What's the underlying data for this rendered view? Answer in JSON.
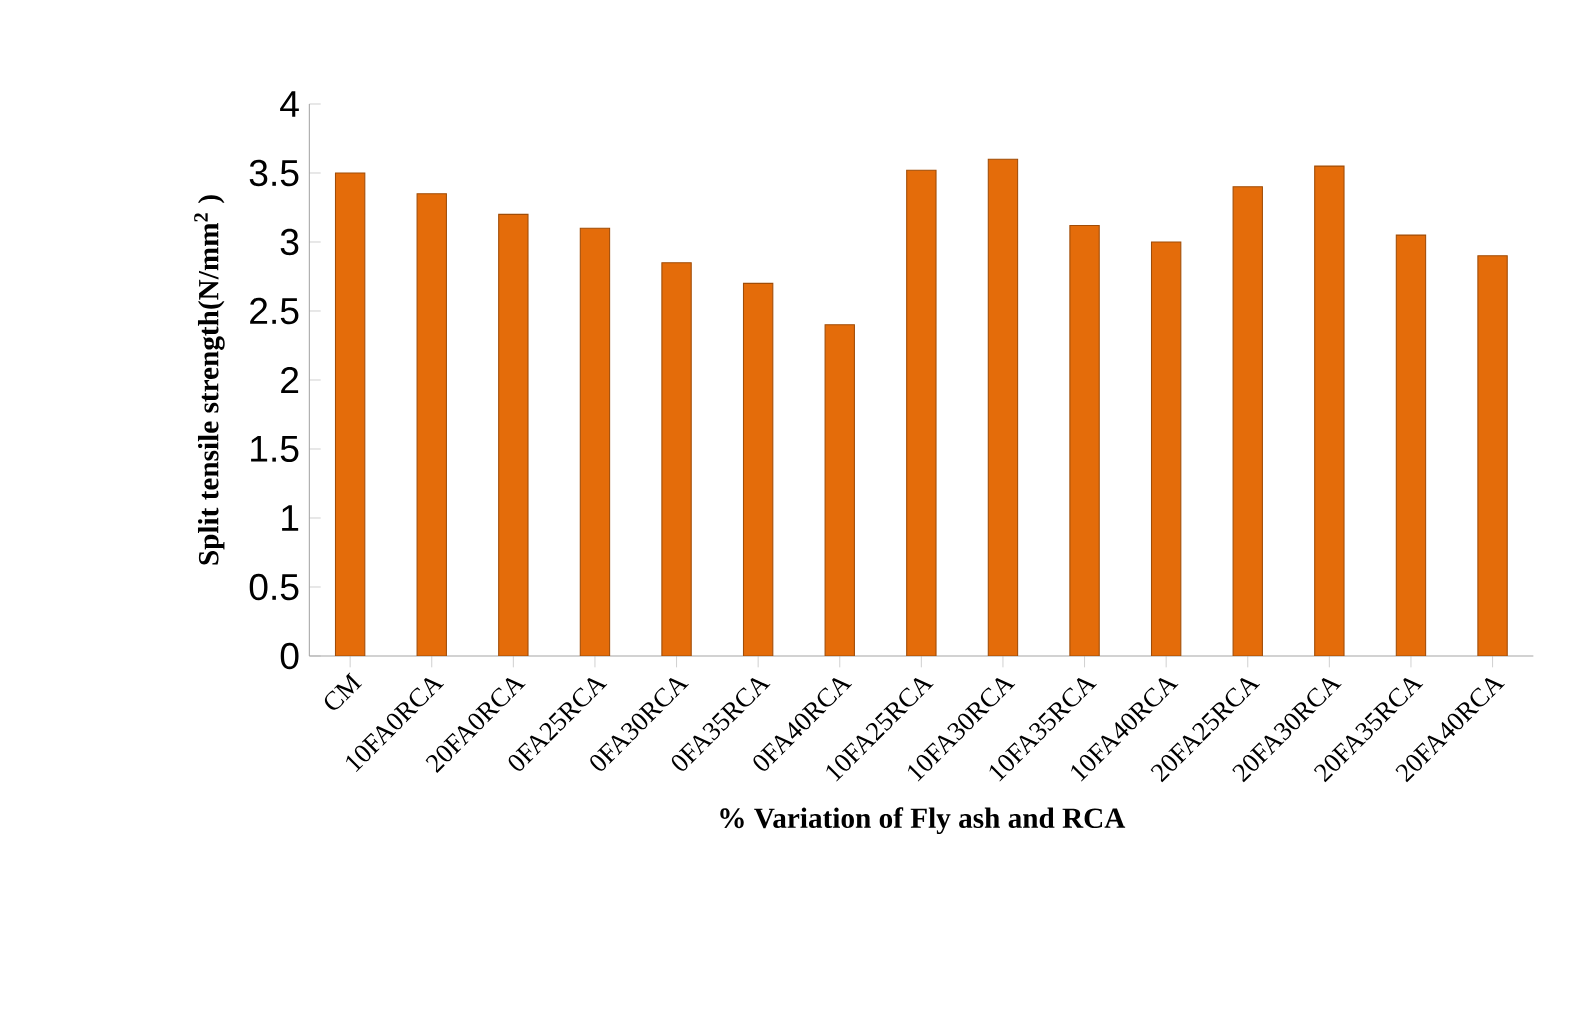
{
  "chart_data": {
    "type": "bar",
    "xlabel": "% Variation of Fly ash and RCA",
    "ylabel": "Split tensile strength(N/mm$^{2}$ )",
    "categories": [
      "CM",
      "10FA0RCA",
      "20FA0RCA",
      "0FA25RCA",
      "0FA30RCA",
      "0FA35RCA",
      "0FA40RCA",
      "10FA25RCA",
      "10FA30RCA",
      "10FA35RCA",
      "10FA40RCA",
      "20FA25RCA",
      "20FA30RCA",
      "20FA35RCA",
      "20FA40RCA"
    ],
    "values": [
      3.5,
      3.35,
      3.2,
      3.1,
      2.85,
      2.7,
      2.4,
      3.52,
      3.6,
      3.12,
      3.0,
      3.4,
      3.55,
      3.05,
      2.9
    ],
    "color": "#e46c0a",
    "ylim": [
      0,
      4
    ],
    "yticks": [
      0,
      0.5,
      1,
      1.5,
      2,
      2.5,
      3,
      3.5,
      4
    ],
    "grid": false
  }
}
